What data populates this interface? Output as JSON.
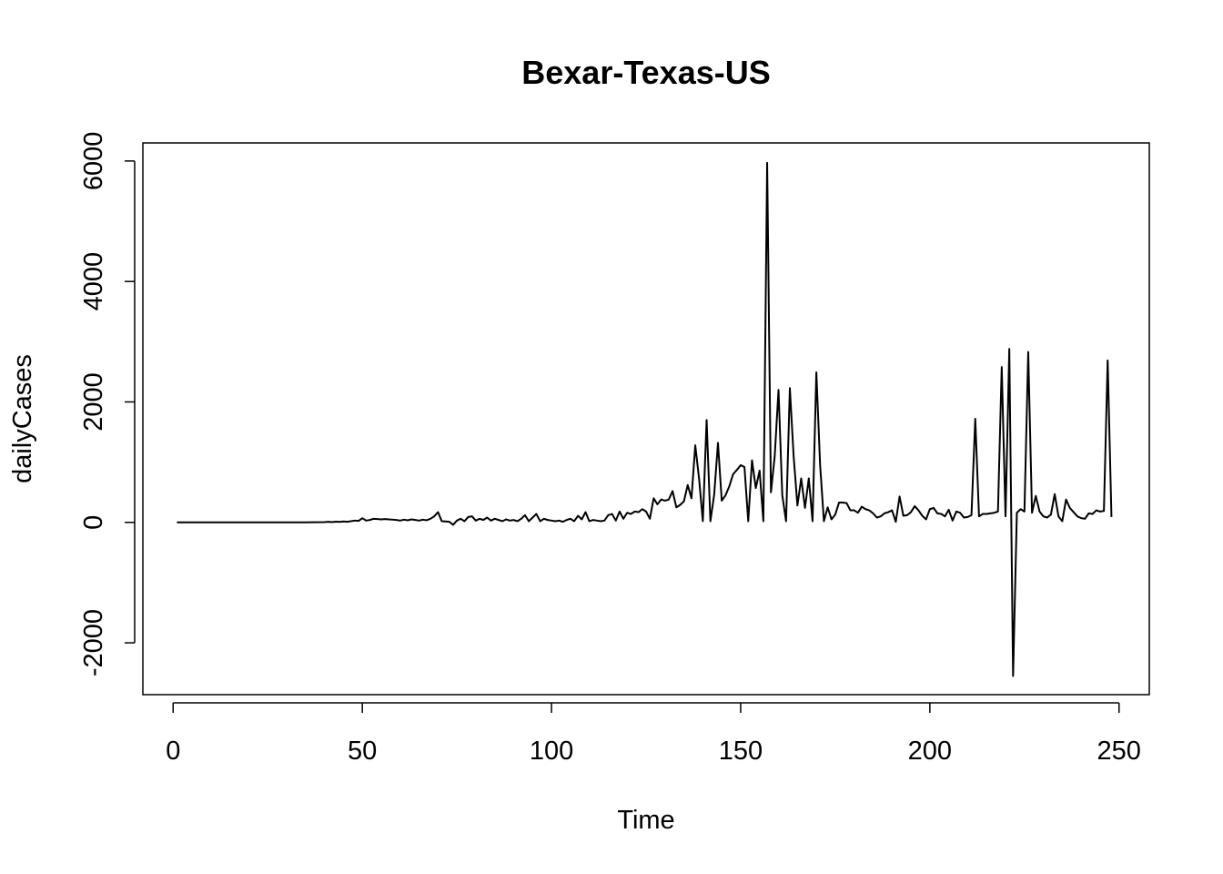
{
  "chart_data": {
    "type": "line",
    "title": "Bexar-Texas-US",
    "xlabel": "Time",
    "ylabel": "dailyCases",
    "xlim": [
      -8,
      258
    ],
    "ylim": [
      -2860,
      6300
    ],
    "xticks": [
      0,
      50,
      100,
      150,
      200,
      250
    ],
    "xtick_labels": [
      "0",
      "50",
      "100",
      "150",
      "200",
      "250"
    ],
    "yticks": [
      -2000,
      0,
      2000,
      4000,
      6000
    ],
    "ytick_labels": [
      "-2000",
      "0",
      "2000",
      "4000",
      "6000"
    ],
    "grid": false,
    "line_color": "#000000",
    "series": [
      {
        "x": [
          1,
          5,
          10,
          15,
          20,
          25,
          30,
          35,
          40,
          41,
          42,
          43,
          44,
          45,
          46,
          47,
          48,
          49,
          50,
          51,
          52,
          53,
          54,
          55,
          56,
          57,
          58,
          59,
          60,
          61,
          62,
          63,
          64,
          65,
          66,
          67,
          68,
          69,
          70,
          71,
          72,
          73,
          74,
          75,
          76,
          77,
          78,
          79,
          80,
          81,
          82,
          83,
          84,
          85,
          86,
          87,
          88,
          89,
          90,
          91,
          92,
          93,
          94,
          95,
          96,
          97,
          98,
          99,
          100,
          101,
          102,
          103,
          104,
          105,
          106,
          107,
          108,
          109,
          110,
          111,
          112,
          113,
          114,
          115,
          116,
          117,
          118,
          119,
          120,
          121,
          122,
          123,
          124,
          125,
          126,
          127,
          128,
          129,
          130,
          131,
          132,
          133,
          134,
          135,
          136,
          137,
          138,
          139,
          140,
          141,
          142,
          143,
          144,
          145,
          146,
          147,
          148,
          149,
          150,
          151,
          152,
          153,
          154,
          155,
          156,
          157,
          158,
          159,
          160,
          161,
          162,
          163,
          164,
          165,
          166,
          167,
          168,
          169,
          170,
          171,
          172,
          173,
          174,
          175,
          176,
          177,
          178,
          179,
          180,
          181,
          182,
          183,
          184,
          185,
          186,
          187,
          188,
          189,
          190,
          191,
          192,
          193,
          194,
          195,
          196,
          197,
          198,
          199,
          200,
          201,
          202,
          203,
          204,
          205,
          206,
          207,
          208,
          209,
          210,
          211,
          212,
          213,
          214,
          215,
          216,
          217,
          218,
          219,
          220,
          221,
          222,
          223,
          224,
          225,
          226,
          227,
          228,
          229,
          230,
          231,
          232,
          233,
          234,
          235,
          236,
          237,
          238,
          239,
          240,
          241,
          242,
          243,
          244,
          245,
          246,
          247,
          248
        ],
        "y": [
          0,
          0,
          0,
          0,
          0,
          0,
          0,
          0,
          5,
          10,
          5,
          12,
          8,
          15,
          10,
          20,
          30,
          25,
          70,
          30,
          40,
          60,
          55,
          50,
          55,
          50,
          45,
          40,
          30,
          45,
          35,
          50,
          40,
          30,
          45,
          35,
          60,
          100,
          170,
          20,
          15,
          10,
          -40,
          30,
          60,
          20,
          90,
          100,
          30,
          60,
          40,
          80,
          30,
          60,
          40,
          20,
          50,
          30,
          40,
          20,
          60,
          120,
          20,
          80,
          140,
          20,
          60,
          40,
          30,
          20,
          30,
          10,
          40,
          60,
          20,
          110,
          50,
          170,
          20,
          40,
          30,
          20,
          30,
          120,
          140,
          30,
          180,
          60,
          160,
          140,
          180,
          170,
          220,
          180,
          60,
          400,
          300,
          380,
          360,
          380,
          520,
          250,
          290,
          350,
          620,
          400,
          1280,
          730,
          20,
          1700,
          20,
          460,
          1320,
          360,
          450,
          600,
          800,
          870,
          950,
          920,
          20,
          1030,
          570,
          860,
          20,
          5970,
          500,
          1100,
          2200,
          450,
          20,
          2230,
          1100,
          280,
          730,
          240,
          730,
          20,
          2490,
          950,
          20,
          250,
          50,
          130,
          330,
          330,
          320,
          200,
          200,
          160,
          260,
          220,
          200,
          150,
          80,
          100,
          150,
          170,
          200,
          10,
          430,
          110,
          120,
          170,
          270,
          200,
          110,
          50,
          220,
          240,
          150,
          140,
          100,
          210,
          30,
          180,
          160,
          80,
          90,
          120,
          1720,
          100,
          140,
          140,
          150,
          160,
          180,
          2580,
          100,
          2880,
          -2550,
          160,
          220,
          180,
          2830,
          160,
          440,
          180,
          100,
          80,
          130,
          470,
          100,
          20,
          380,
          240,
          170,
          100,
          70,
          60,
          150,
          140,
          200,
          180,
          190,
          2690,
          90
        ]
      }
    ]
  }
}
